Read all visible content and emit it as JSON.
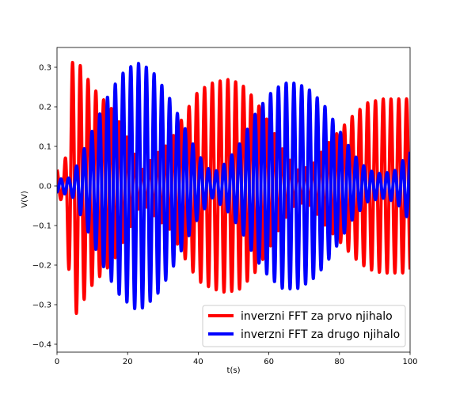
{
  "chart_data": {
    "type": "line",
    "title": "",
    "xlabel": "t(s)",
    "ylabel": "V(V)",
    "xlim": [
      0,
      100
    ],
    "ylim": [
      -0.42,
      0.35
    ],
    "xticks": [
      0,
      20,
      40,
      60,
      80,
      100
    ],
    "yticks": [
      -0.4,
      -0.3,
      -0.2,
      -0.1,
      0.0,
      0.1,
      0.2,
      0.3
    ],
    "xtick_labels": [
      "0",
      "20",
      "40",
      "60",
      "80",
      "100"
    ],
    "ytick_labels": [
      "−0.4",
      "−0.3",
      "−0.2",
      "−0.1",
      "0.0",
      "0.1",
      "0.2",
      "0.3"
    ],
    "grid": false,
    "legend": {
      "placement": "lower-right"
    },
    "series": [
      {
        "name": "inverzni FFT za prvo njihalo",
        "color": "#ff0000",
        "carrier_period_s": 2.2,
        "phase_shift_s": 0.0,
        "envelope": {
          "t": [
            0,
            2,
            4,
            5,
            10,
            16,
            20,
            24,
            28,
            32,
            36,
            40,
            44,
            48,
            52,
            56,
            60,
            64,
            68,
            72,
            76,
            80,
            84,
            88,
            92,
            96,
            100
          ],
          "v": [
            0.04,
            0.03,
            0.3,
            0.33,
            0.25,
            0.19,
            0.12,
            0.04,
            0.08,
            0.11,
            0.18,
            0.24,
            0.26,
            0.27,
            0.26,
            0.22,
            0.16,
            0.09,
            0.04,
            0.05,
            0.1,
            0.14,
            0.18,
            0.21,
            0.22,
            0.22,
            0.22
          ]
        }
      },
      {
        "name": "inverzni FFT za drugo njihalo",
        "color": "#0000ff",
        "carrier_period_s": 2.2,
        "phase_shift_s": 1.1,
        "envelope": {
          "t": [
            0,
            2,
            4,
            6,
            10,
            14,
            18,
            22,
            24,
            28,
            32,
            36,
            40,
            44,
            48,
            52,
            56,
            60,
            64,
            68,
            72,
            76,
            80,
            84,
            88,
            92,
            96,
            100
          ],
          "v": [
            0.015,
            0.02,
            0.02,
            0.06,
            0.14,
            0.22,
            0.28,
            0.31,
            0.31,
            0.28,
            0.22,
            0.15,
            0.08,
            0.03,
            0.06,
            0.11,
            0.18,
            0.23,
            0.26,
            0.26,
            0.24,
            0.2,
            0.14,
            0.08,
            0.04,
            0.03,
            0.04,
            0.09
          ]
        }
      }
    ]
  }
}
